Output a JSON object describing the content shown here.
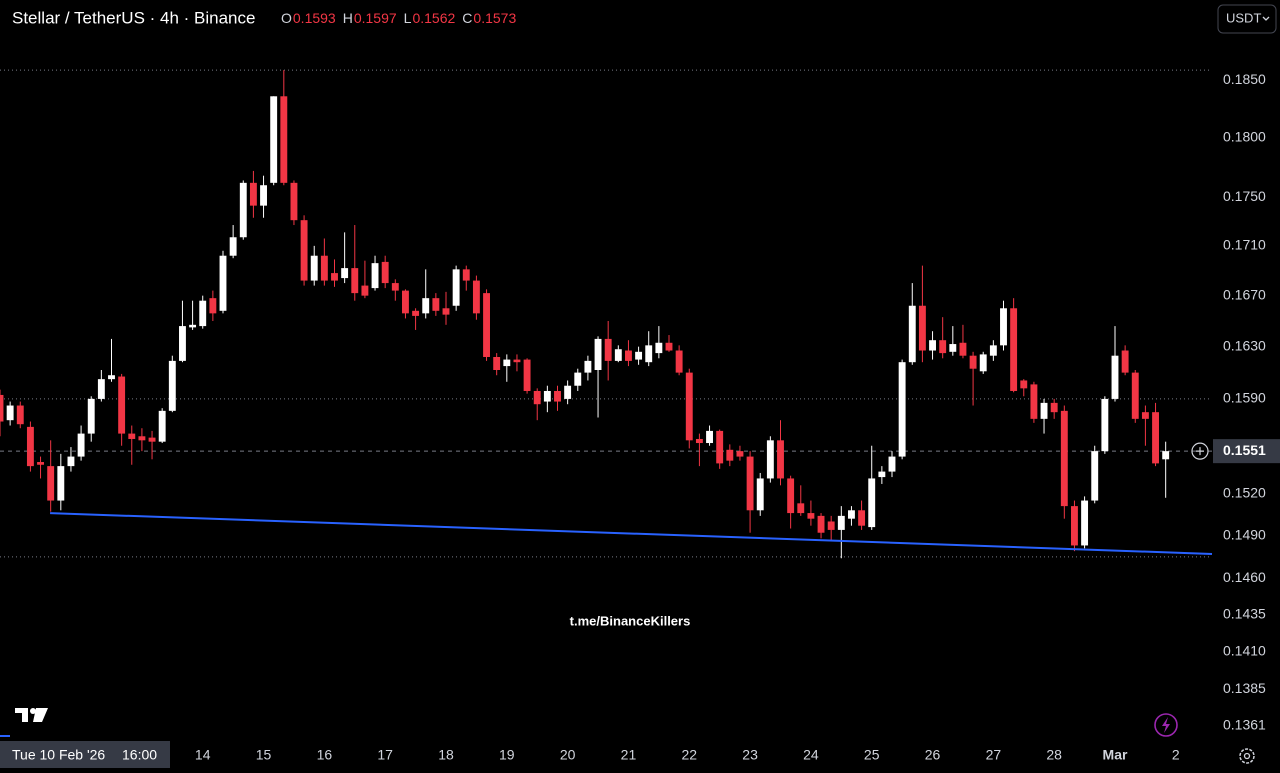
{
  "chart_data": {
    "type": "candlestick",
    "title": "Stellar / TetherUS · 4h · Binance",
    "legend_labels": [
      "O",
      "H",
      "L",
      "C"
    ],
    "legend_values": [
      0.1593,
      0.1597,
      0.1562,
      0.1573
    ],
    "currency": "USDT",
    "watermark": "t.me/BinanceKillers",
    "crosshair_date": "Tue 10 Feb '26",
    "crosshair_time": "16:00",
    "up_color": "#ffffff",
    "down_color": "#f23645",
    "log_scale": true,
    "grid": false,
    "xlim": [
      10.6667,
      30.595
    ],
    "xticks": [
      14,
      15,
      16,
      17,
      18,
      19,
      20,
      21,
      22,
      23,
      24,
      25,
      26,
      27,
      28,
      {
        "value": 29,
        "label": "Mar"
      },
      {
        "value": 30,
        "label": "2"
      }
    ],
    "ylim": [
      0.1352,
      0.1922
    ],
    "yticks": [
      {
        "value": 0.185,
        "label": "0.1850"
      },
      {
        "value": 0.18,
        "label": "0.1800"
      },
      {
        "value": 0.175,
        "label": "0.1750"
      },
      {
        "value": 0.171,
        "label": "0.1710"
      },
      {
        "value": 0.167,
        "label": "0.1670"
      },
      {
        "value": 0.163,
        "label": "0.1630"
      },
      {
        "value": 0.159,
        "label": "0.1590"
      },
      {
        "value": 0.152,
        "label": "0.1520"
      },
      {
        "value": 0.149,
        "label": "0.1490"
      },
      {
        "value": 0.146,
        "label": "0.1460"
      },
      0.1435,
      {
        "value": 0.141,
        "label": "0.1410"
      },
      0.1385,
      0.1361
    ],
    "last_price": 0.1551,
    "horizontal_lines": [
      0.1859,
      0.159,
      0.1475
    ],
    "trend_line": {
      "x": [
        11.49,
        30.595
      ],
      "values": [
        0.1506,
        0.1477
      ],
      "color": "#2962ff"
    },
    "x": [
      10.6667,
      10.8333,
      11,
      11.1667,
      11.3333,
      11.5,
      11.6667,
      11.8333,
      12,
      12.1667,
      12.3333,
      12.5,
      12.6667,
      12.8333,
      13,
      13.1667,
      13.3333,
      13.5,
      13.6667,
      13.8333,
      14,
      14.1667,
      14.3333,
      14.5,
      14.6667,
      14.8333,
      15,
      15.1667,
      15.3333,
      15.5,
      15.6667,
      15.8333,
      16,
      16.1667,
      16.3333,
      16.5,
      16.6667,
      16.8333,
      17,
      17.1667,
      17.3333,
      17.5,
      17.6667,
      17.8333,
      18,
      18.1667,
      18.3333,
      18.5,
      18.6667,
      18.8333,
      19,
      19.1667,
      19.3333,
      19.5,
      19.6667,
      19.8333,
      20,
      20.1667,
      20.3333,
      20.5,
      20.6667,
      20.8333,
      21,
      21.1667,
      21.3333,
      21.5,
      21.6667,
      21.8333,
      22,
      22.1667,
      22.3333,
      22.5,
      22.6667,
      22.8333,
      23,
      23.1667,
      23.3333,
      23.5,
      23.6667,
      23.8333,
      24,
      24.1667,
      24.3333,
      24.5,
      24.6667,
      24.8333,
      25,
      25.1667,
      25.3333,
      25.5,
      25.6667,
      25.8333,
      26,
      26.1667,
      26.3333,
      26.5,
      26.6667,
      26.8333,
      27,
      27.1667,
      27.3333,
      27.5,
      27.6667,
      27.8333,
      28,
      28.1667,
      28.3333,
      28.5,
      28.6667,
      28.8333,
      29,
      29.1667,
      29.3333,
      29.5,
      29.6667,
      29.8333
    ],
    "open": [
      0.1593,
      0.1574,
      0.1585,
      0.1569,
      0.1543,
      0.154,
      0.1515,
      0.154,
      0.1547,
      0.1564,
      0.159,
      0.1605,
      0.1607,
      0.1564,
      0.1562,
      0.1561,
      0.1558,
      0.1581,
      0.1619,
      0.1645,
      0.1646,
      0.1668,
      0.1658,
      0.1702,
      0.1717,
      0.1762,
      0.1743,
      0.1762,
      0.1836,
      0.1762,
      0.1731,
      0.1682,
      0.1702,
      0.1688,
      0.1684,
      0.1692,
      0.1678,
      0.1676,
      0.1697,
      0.168,
      0.1674,
      0.1658,
      0.1656,
      0.1668,
      0.166,
      0.1662,
      0.1691,
      0.1682,
      0.1672,
      0.1622,
      0.1615,
      0.162,
      0.162,
      0.1596,
      0.1588,
      0.1596,
      0.159,
      0.16,
      0.161,
      0.1612,
      0.1636,
      0.1619,
      0.1627,
      0.162,
      0.1618,
      0.1625,
      0.1633,
      0.1627,
      0.161,
      0.156,
      0.1557,
      0.1566,
      0.1552,
      0.1551,
      0.1547,
      0.1508,
      0.1531,
      0.1559,
      0.1531,
      0.1513,
      0.1506,
      0.1504,
      0.15,
      0.1494,
      0.1502,
      0.1508,
      0.1496,
      0.1532,
      0.1536,
      0.1547,
      0.1618,
      0.1662,
      0.1627,
      0.1635,
      0.1626,
      0.1633,
      0.1623,
      0.1611,
      0.1623,
      0.1631,
      0.166,
      0.1604,
      0.1601,
      0.1575,
      0.1587,
      0.1581,
      0.1511,
      0.1483,
      0.1515,
      0.1551,
      0.159,
      0.1627,
      0.161,
      0.158,
      0.158,
      0.1545
    ],
    "high": [
      0.1597,
      0.1588,
      0.1588,
      0.1573,
      0.1547,
      0.1559,
      0.1549,
      0.1554,
      0.157,
      0.1592,
      0.1612,
      0.1636,
      0.1609,
      0.157,
      0.1568,
      0.1566,
      0.1583,
      0.1623,
      0.1666,
      0.1666,
      0.167,
      0.1674,
      0.1706,
      0.1727,
      0.1764,
      0.1772,
      0.1768,
      0.1836,
      0.1859,
      0.1764,
      0.1735,
      0.171,
      0.1716,
      0.1699,
      0.1721,
      0.1727,
      0.1698,
      0.1702,
      0.1702,
      0.1683,
      0.1675,
      0.166,
      0.1691,
      0.1672,
      0.1673,
      0.1694,
      0.1694,
      0.1686,
      0.1675,
      0.1625,
      0.1624,
      0.1624,
      0.1621,
      0.1598,
      0.16,
      0.16,
      0.1604,
      0.1613,
      0.1623,
      0.1638,
      0.165,
      0.1631,
      0.1635,
      0.163,
      0.1642,
      0.1646,
      0.1639,
      0.1631,
      0.1613,
      0.1564,
      0.157,
      0.1567,
      0.1556,
      0.1555,
      0.1551,
      0.1535,
      0.1562,
      0.1574,
      0.1533,
      0.1526,
      0.1515,
      0.1506,
      0.1504,
      0.1511,
      0.1511,
      0.1515,
      0.1555,
      0.154,
      0.1551,
      0.162,
      0.168,
      0.1694,
      0.1642,
      0.1653,
      0.1646,
      0.1647,
      0.1626,
      0.1626,
      0.1635,
      0.1666,
      0.1668,
      0.1605,
      0.1603,
      0.159,
      0.159,
      0.1585,
      0.1515,
      0.1518,
      0.1555,
      0.1592,
      0.1646,
      0.1631,
      0.1612,
      0.1585,
      0.1587,
      0.1558
    ],
    "low": [
      0.1562,
      0.157,
      0.1568,
      0.1536,
      0.1531,
      0.1507,
      0.1508,
      0.1536,
      0.1544,
      0.1558,
      0.1588,
      0.1603,
      0.1555,
      0.1541,
      0.1551,
      0.1545,
      0.1557,
      0.158,
      0.1618,
      0.1643,
      0.1644,
      0.165,
      0.1656,
      0.17,
      0.1715,
      0.1733,
      0.1733,
      0.176,
      0.176,
      0.1727,
      0.1678,
      0.1678,
      0.1678,
      0.1677,
      0.168,
      0.1666,
      0.1668,
      0.1674,
      0.1676,
      0.1666,
      0.1652,
      0.1643,
      0.1652,
      0.1654,
      0.1647,
      0.1658,
      0.1674,
      0.1651,
      0.1619,
      0.1608,
      0.1603,
      0.1611,
      0.1594,
      0.1574,
      0.158,
      0.1581,
      0.1586,
      0.1596,
      0.1604,
      0.1576,
      0.1604,
      0.1618,
      0.1615,
      0.1616,
      0.1615,
      0.1621,
      0.1626,
      0.1608,
      0.1553,
      0.154,
      0.1555,
      0.1538,
      0.154,
      0.1544,
      0.1492,
      0.1504,
      0.1528,
      0.1526,
      0.1495,
      0.1504,
      0.1497,
      0.1488,
      0.1486,
      0.1474,
      0.1497,
      0.1494,
      0.1494,
      0.1527,
      0.1532,
      0.1545,
      0.1616,
      0.1618,
      0.162,
      0.1621,
      0.1623,
      0.1621,
      0.1585,
      0.1609,
      0.1619,
      0.1627,
      0.1595,
      0.1592,
      0.1572,
      0.1564,
      0.1575,
      0.1502,
      0.1479,
      0.1481,
      0.1513,
      0.1549,
      0.1588,
      0.1608,
      0.1572,
      0.1555,
      0.154,
      0.1517
    ],
    "close": [
      0.1573,
      0.1585,
      0.1571,
      0.154,
      0.1541,
      0.1515,
      0.154,
      0.1547,
      0.1564,
      0.159,
      0.1605,
      0.1608,
      0.1564,
      0.156,
      0.1559,
      0.1558,
      0.1581,
      0.1619,
      0.1646,
      0.1647,
      0.1666,
      0.1656,
      0.1702,
      0.1717,
      0.1762,
      0.1743,
      0.176,
      0.1836,
      0.1762,
      0.1731,
      0.1682,
      0.1702,
      0.1682,
      0.1682,
      0.1692,
      0.1672,
      0.167,
      0.1696,
      0.168,
      0.1674,
      0.1656,
      0.1654,
      0.1668,
      0.1658,
      0.1655,
      0.1691,
      0.1682,
      0.1656,
      0.1622,
      0.1612,
      0.162,
      0.1618,
      0.1596,
      0.1586,
      0.1596,
      0.1588,
      0.16,
      0.161,
      0.1619,
      0.1636,
      0.1619,
      0.1628,
      0.1619,
      0.1626,
      0.1631,
      0.1633,
      0.1627,
      0.161,
      0.1559,
      0.1557,
      0.1566,
      0.1542,
      0.1544,
      0.1547,
      0.1508,
      0.1531,
      0.1559,
      0.1531,
      0.1506,
      0.1506,
      0.1502,
      0.1492,
      0.1494,
      0.1504,
      0.1508,
      0.1497,
      0.1531,
      0.1536,
      0.1547,
      0.1618,
      0.1662,
      0.1627,
      0.1635,
      0.1625,
      0.1632,
      0.1623,
      0.1613,
      0.1624,
      0.1631,
      0.166,
      0.1596,
      0.1598,
      0.1575,
      0.1587,
      0.158,
      0.1511,
      0.1483,
      0.1515,
      0.1551,
      0.159,
      0.1623,
      0.161,
      0.1575,
      0.1575,
      0.1542,
      0.1551
    ]
  }
}
